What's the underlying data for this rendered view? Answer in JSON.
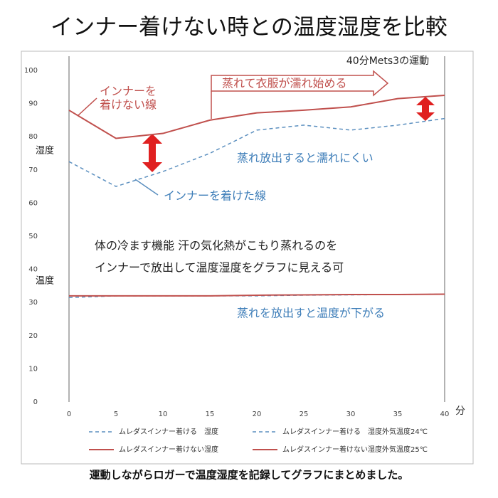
{
  "chart_data": {
    "type": "line",
    "title": "インナー着けない時との温度湿度を比較",
    "x": [
      0,
      5,
      10,
      15,
      20,
      25,
      30,
      35,
      40
    ],
    "xlim": [
      0,
      40
    ],
    "xticks": [
      0,
      5,
      10,
      15,
      20,
      25,
      30,
      35,
      40
    ],
    "ylim": [
      0,
      100
    ],
    "yticks": [
      0,
      10,
      20,
      30,
      40,
      50,
      60,
      70,
      80,
      90,
      100
    ],
    "x_label": "分",
    "series": [
      {
        "name": "ムレダスインナー着ける　湿度",
        "color": "#5b8fbf",
        "dash": true,
        "values": [
          72.5,
          65,
          69.5,
          75,
          82,
          83.5,
          82,
          83.5,
          85.5
        ]
      },
      {
        "name": "ムレダスインナー着ける　湿度外気温度24℃",
        "color": "#5b8fbf",
        "dash": true,
        "values": [
          31.5,
          32,
          32,
          32,
          32,
          32.2,
          32.3,
          32.4,
          32.5
        ]
      },
      {
        "name": "ムレダスインナー着けない湿度",
        "color": "#c0504d",
        "dash": false,
        "values": [
          88,
          79.5,
          81,
          85,
          87.2,
          88,
          89,
          91.5,
          92.5
        ]
      },
      {
        "name": "ムレダスインナー着けない湿度外気温度25℃",
        "color": "#c0504d",
        "dash": false,
        "values": [
          32,
          32,
          32,
          32,
          32.2,
          32.3,
          32.4,
          32.4,
          32.5
        ]
      }
    ],
    "annotations": [
      "40分Mets3の運動",
      "インナーを",
      "着けない線",
      "蒸れて衣服が濡れ始める",
      "湿度",
      "蒸れ放出すると濡れにくい",
      "インナーを着けた線",
      "体の冷ます機能 汗の気化熱がこもり蒸れるのを",
      "インナーで放出して温度湿度をグラフに見える可",
      "温度",
      "蒸れを放出すと温度が下がる"
    ],
    "caption": "運動しながらロガーで温度湿度を記録してグラフにまとめました。"
  }
}
